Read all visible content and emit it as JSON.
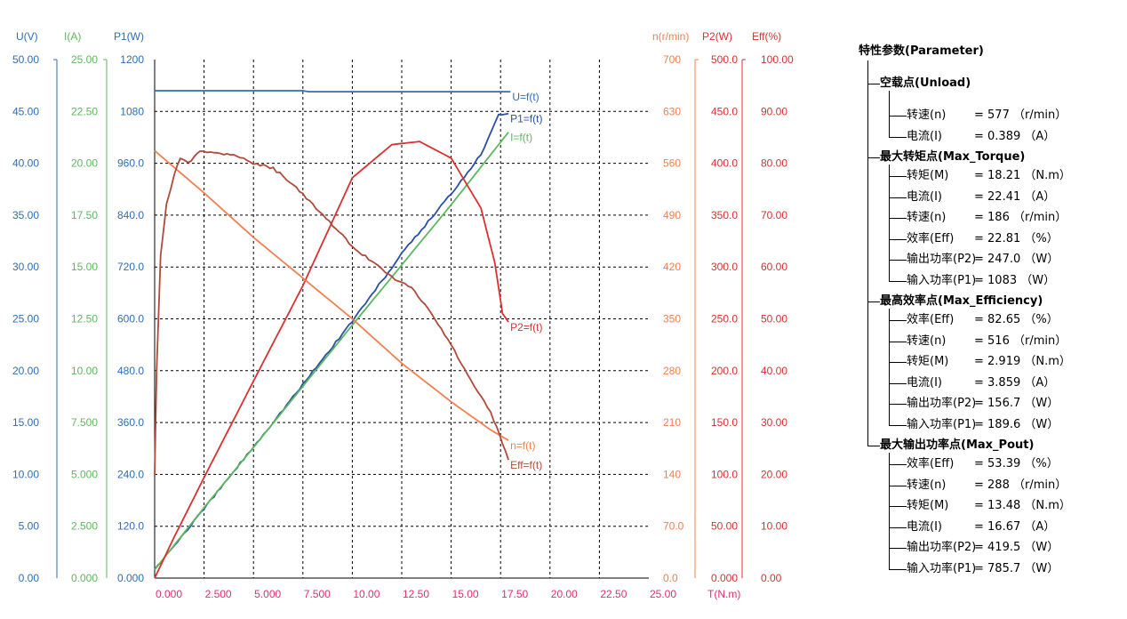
{
  "chart_data": {
    "type": "line",
    "x": {
      "label": "T(N.m)",
      "min": 0,
      "max": 25,
      "ticks": [
        "0.000",
        "2.500",
        "5.000",
        "7.500",
        "10.00",
        "12.50",
        "15.00",
        "17.50",
        "20.00",
        "22.50",
        "25.00"
      ],
      "color": "#e0306a"
    },
    "left_axes": [
      {
        "label": "U(V)",
        "min": 0,
        "max": 50,
        "color": "#2f6db5",
        "ticks": [
          "0.00",
          "5.00",
          "10.00",
          "15.00",
          "20.00",
          "25.00",
          "30.00",
          "35.00",
          "40.00",
          "45.00",
          "50.00"
        ]
      },
      {
        "label": "I(A)",
        "min": 0,
        "max": 25,
        "color": "#5cb85c",
        "ticks": [
          "0.000",
          "2.500",
          "5.000",
          "7.500",
          "10.00",
          "12.50",
          "15.00",
          "17.50",
          "20.00",
          "22.50",
          "25.00"
        ]
      },
      {
        "label": "P1(W)",
        "min": 0,
        "max": 1200,
        "color": "#2f6db5",
        "ticks": [
          "0.000",
          "120.0",
          "240.0",
          "360.0",
          "480.0",
          "600.0",
          "720.0",
          "840.0",
          "960.0",
          "1080",
          "1200"
        ]
      }
    ],
    "right_axes": [
      {
        "label": "n(r/min)",
        "min": 0,
        "max": 700,
        "color": "#f08050",
        "ticks": [
          "0.0",
          "70.0",
          "140",
          "210",
          "280",
          "350",
          "420",
          "490",
          "560",
          "630",
          "700"
        ]
      },
      {
        "label": "P2(W)",
        "min": 0,
        "max": 500,
        "color": "#d93030",
        "ticks": [
          "0.000",
          "50.00",
          "100.0",
          "150.0",
          "200.0",
          "250.0",
          "300.0",
          "350.0",
          "400.0",
          "450.0",
          "500.0"
        ]
      },
      {
        "label": "Eff(%)",
        "min": 0,
        "max": 100,
        "color": "#d93030",
        "ticks": [
          "0.00",
          "10.00",
          "20.00",
          "30.00",
          "40.00",
          "50.00",
          "60.00",
          "70.00",
          "80.00",
          "90.00",
          "100.00"
        ]
      }
    ],
    "grid": true,
    "series": [
      {
        "name": "U=f(t)",
        "axis": "U(V)",
        "color": "#2f6db5",
        "points": [
          [
            0,
            47
          ],
          [
            5,
            47
          ],
          [
            7.5,
            47
          ],
          [
            7.8,
            46.9
          ],
          [
            18,
            46.9
          ]
        ]
      },
      {
        "name": "P1=f(t)",
        "axis": "P1(W)",
        "color": "#2a4fa8",
        "points": [
          [
            0,
            20
          ],
          [
            2.5,
            160
          ],
          [
            5,
            304
          ],
          [
            7.5,
            448
          ],
          [
            10,
            595
          ],
          [
            12.5,
            750
          ],
          [
            15,
            890
          ],
          [
            16.5,
            980
          ],
          [
            17.4,
            1075
          ],
          [
            17.9,
            1075
          ]
        ]
      },
      {
        "name": "I=f(t)",
        "axis": "I(A)",
        "color": "#5cb85c",
        "points": [
          [
            0,
            0.4
          ],
          [
            2.5,
            3.4
          ],
          [
            5,
            6.3
          ],
          [
            7.5,
            9.25
          ],
          [
            10,
            12.2
          ],
          [
            12.5,
            15.1
          ],
          [
            15,
            18.0
          ],
          [
            17.9,
            21.5
          ]
        ]
      },
      {
        "name": "P2=f(t)",
        "axis": "P2(W)",
        "color": "#d93030",
        "points": [
          [
            0,
            0
          ],
          [
            1,
            40
          ],
          [
            2.5,
            97
          ],
          [
            5,
            190
          ],
          [
            7.5,
            282
          ],
          [
            10,
            386
          ],
          [
            12,
            418
          ],
          [
            13.4,
            421
          ],
          [
            15,
            405
          ],
          [
            16.5,
            357
          ],
          [
            17.2,
            305
          ],
          [
            17.6,
            255
          ],
          [
            17.9,
            247
          ]
        ]
      },
      {
        "name": "n=f(t)",
        "axis": "n(r/min)",
        "color": "#f08050",
        "points": [
          [
            0,
            577
          ],
          [
            2.5,
            520
          ],
          [
            5,
            460
          ],
          [
            7.5,
            405
          ],
          [
            10,
            350
          ],
          [
            12.5,
            290
          ],
          [
            15,
            238
          ],
          [
            17,
            200
          ],
          [
            17.9,
            186
          ]
        ]
      },
      {
        "name": "Eff=f(t)",
        "axis": "Eff(%)",
        "color": "#b04a3a",
        "points": [
          [
            0,
            20
          ],
          [
            0.1,
            40
          ],
          [
            0.3,
            62
          ],
          [
            0.6,
            72
          ],
          [
            1,
            78
          ],
          [
            1.3,
            81
          ],
          [
            1.7,
            80
          ],
          [
            2.3,
            82.6
          ],
          [
            3,
            82
          ],
          [
            4,
            81.8
          ],
          [
            5,
            80
          ],
          [
            6,
            79
          ],
          [
            7,
            76
          ],
          [
            8,
            72
          ],
          [
            9,
            68
          ],
          [
            10,
            64
          ],
          [
            11,
            61
          ],
          [
            12,
            58
          ],
          [
            13,
            56
          ],
          [
            14,
            51
          ],
          [
            15,
            45
          ],
          [
            16,
            38
          ],
          [
            17,
            32
          ],
          [
            17.6,
            26
          ],
          [
            17.9,
            22.8
          ]
        ]
      }
    ]
  },
  "params": {
    "title": "特性参数(Parameter)",
    "groups": [
      {
        "title": "空载点(Unload)",
        "items": [
          {
            "label": "转速(n)",
            "value": "= 577 （r/min）"
          },
          {
            "label": "电流(I)",
            "value": "= 0.389 （A）"
          }
        ]
      },
      {
        "title": "最大转矩点(Max_Torque)",
        "items": [
          {
            "label": "转矩(M)",
            "value": "= 18.21 （N.m）"
          },
          {
            "label": "电流(I)",
            "value": "= 22.41 （A）"
          },
          {
            "label": "转速(n)",
            "value": "= 186 （r/min）"
          },
          {
            "label": "效率(Eff)",
            "value": "= 22.81 （%）"
          },
          {
            "label": "输出功率(P2)",
            "value": "= 247.0 （W）"
          },
          {
            "label": "输入功率(P1)",
            "value": "= 1083 （W）"
          }
        ]
      },
      {
        "title": "最高效率点(Max_Efficiency)",
        "items": [
          {
            "label": "效率(Eff)",
            "value": "= 82.65 （%）"
          },
          {
            "label": "转速(n)",
            "value": "= 516 （r/min）"
          },
          {
            "label": "转矩(M)",
            "value": "= 2.919 （N.m）"
          },
          {
            "label": "电流(I)",
            "value": "= 3.859 （A）"
          },
          {
            "label": "输出功率(P2)",
            "value": "= 156.7 （W）"
          },
          {
            "label": "输入功率(P1)",
            "value": "= 189.6 （W）"
          }
        ]
      },
      {
        "title": "最大输出功率点(Max_Pout)",
        "items": [
          {
            "label": "效率(Eff)",
            "value": "= 53.39 （%）"
          },
          {
            "label": "转速(n)",
            "value": "= 288 （r/min）"
          },
          {
            "label": "转矩(M)",
            "value": "= 13.48 （N.m）"
          },
          {
            "label": "电流(I)",
            "value": "= 16.67 （A）"
          },
          {
            "label": "输出功率(P2)",
            "value": "= 419.5 （W）"
          },
          {
            "label": "输入功率(P1)",
            "value": "= 785.7 （W）"
          }
        ]
      }
    ]
  }
}
